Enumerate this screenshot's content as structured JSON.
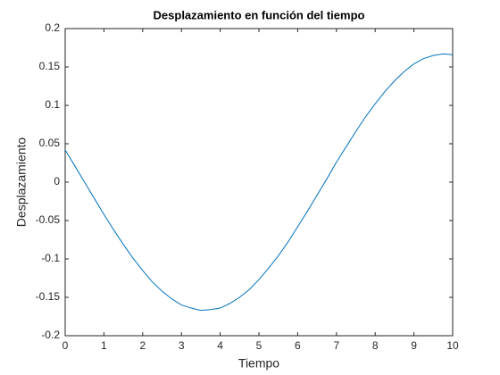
{
  "chart_data": {
    "type": "line",
    "title": "Desplazamiento en función del tiempo",
    "x_label": "Tiempo",
    "y_label": "Desplazamiento",
    "x": [
      0,
      0.25,
      0.5,
      0.75,
      1,
      1.25,
      1.5,
      1.75,
      2,
      2.25,
      2.5,
      2.75,
      3,
      3.25,
      3.5,
      3.75,
      4,
      4.25,
      4.5,
      4.75,
      5,
      5.25,
      5.5,
      5.75,
      6,
      6.25,
      6.5,
      6.75,
      7,
      7.25,
      7.5,
      7.75,
      8,
      8.25,
      8.5,
      8.75,
      9,
      9.25,
      9.5,
      9.75,
      10
    ],
    "series": [
      {
        "color": "#0072bd",
        "values": [
          0.042,
          0.021,
          0.0,
          -0.021,
          -0.042,
          -0.062,
          -0.081,
          -0.099,
          -0.115,
          -0.13,
          -0.142,
          -0.152,
          -0.16,
          -0.164,
          -0.167,
          -0.166,
          -0.164,
          -0.158,
          -0.15,
          -0.14,
          -0.127,
          -0.112,
          -0.096,
          -0.078,
          -0.058,
          -0.038,
          -0.017,
          0.004,
          0.026,
          0.046,
          0.066,
          0.085,
          0.102,
          0.118,
          0.132,
          0.144,
          0.154,
          0.161,
          0.165,
          0.167,
          0.166
        ]
      }
    ],
    "xlim": [
      0,
      10
    ],
    "xticks": [
      0,
      1,
      2,
      3,
      4,
      5,
      6,
      7,
      8,
      9,
      10
    ],
    "ylim": [
      -0.2,
      0.2
    ],
    "yticks": [
      -0.2,
      -0.15,
      -0.1,
      -0.05,
      0,
      0.05,
      0.1,
      0.15,
      0.2
    ],
    "grid": false
  }
}
